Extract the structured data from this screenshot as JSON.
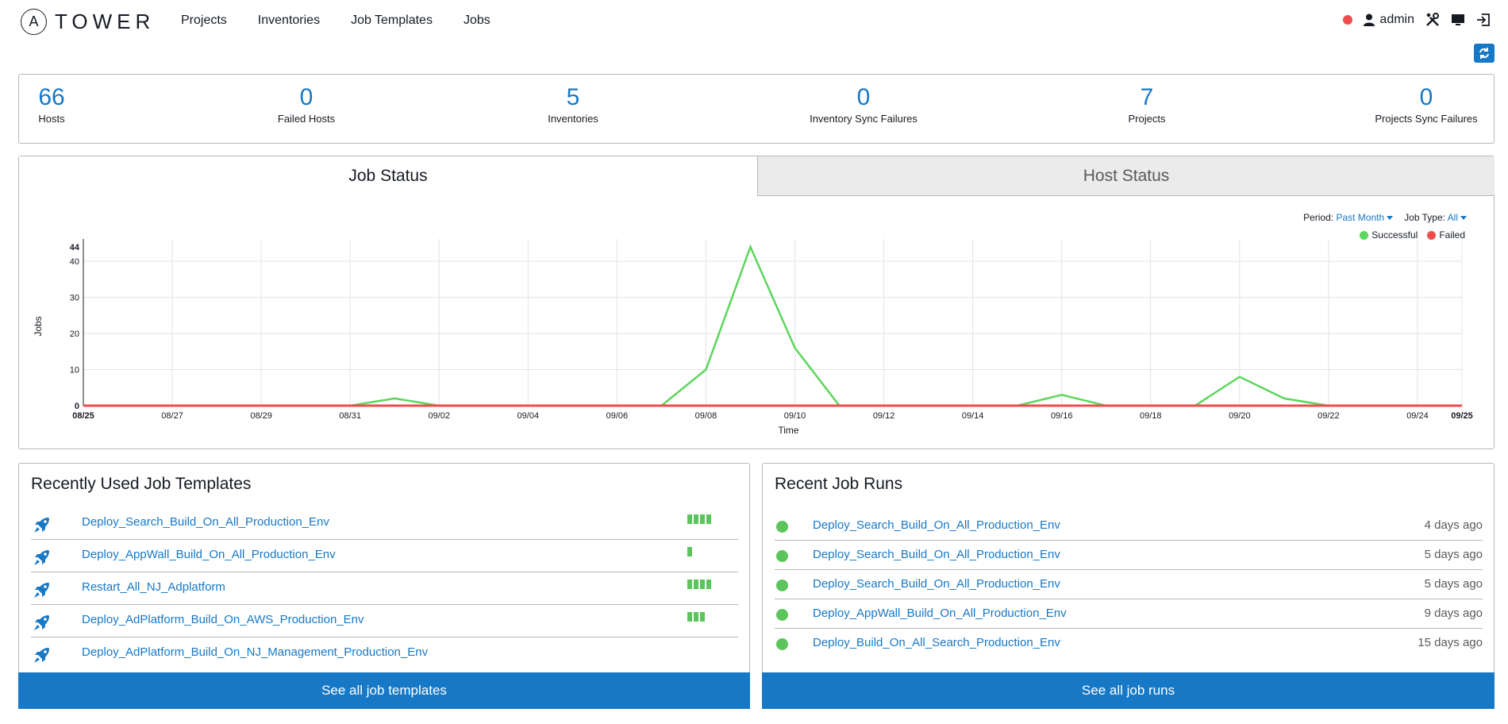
{
  "brand": {
    "logo_letter": "A",
    "name": "TOWER"
  },
  "nav": {
    "links": [
      "Projects",
      "Inventories",
      "Job Templates",
      "Jobs"
    ],
    "user": "admin"
  },
  "counts": [
    {
      "value": "66",
      "label": "Hosts"
    },
    {
      "value": "0",
      "label": "Failed Hosts"
    },
    {
      "value": "5",
      "label": "Inventories"
    },
    {
      "value": "0",
      "label": "Inventory Sync Failures"
    },
    {
      "value": "7",
      "label": "Projects"
    },
    {
      "value": "0",
      "label": "Projects Sync Failures"
    }
  ],
  "tabs": {
    "job_status": "Job Status",
    "host_status": "Host Status"
  },
  "filters": {
    "period_label": "Period:",
    "period_value": "Past Month",
    "job_type_label": "Job Type:",
    "job_type_value": "All"
  },
  "chart_data": {
    "type": "line",
    "title": "",
    "xlabel": "Time",
    "ylabel": "Jobs",
    "ylim": [
      0,
      44
    ],
    "yticks": [
      0,
      10,
      20,
      30,
      40,
      44
    ],
    "x_tick_labels": [
      "08/25",
      "08/27",
      "08/29",
      "08/31",
      "09/02",
      "09/04",
      "09/06",
      "09/08",
      "09/10",
      "09/12",
      "09/14",
      "09/16",
      "09/18",
      "09/20",
      "09/22",
      "09/24",
      "09/25"
    ],
    "x": [
      "08/25",
      "08/26",
      "08/27",
      "08/28",
      "08/29",
      "08/30",
      "08/31",
      "09/01",
      "09/02",
      "09/03",
      "09/04",
      "09/05",
      "09/06",
      "09/07",
      "09/08",
      "09/09",
      "09/10",
      "09/11",
      "09/12",
      "09/13",
      "09/14",
      "09/15",
      "09/16",
      "09/17",
      "09/18",
      "09/19",
      "09/20",
      "09/21",
      "09/22",
      "09/23",
      "09/24",
      "09/25"
    ],
    "series": [
      {
        "name": "Successful",
        "color": "#5cd65c",
        "values": [
          0,
          0,
          0,
          0,
          0,
          0,
          0,
          2,
          0,
          0,
          0,
          0,
          0,
          0,
          10,
          44,
          16,
          0,
          0,
          0,
          0,
          0,
          3,
          0,
          0,
          0,
          8,
          2,
          0,
          0,
          0,
          0
        ]
      },
      {
        "name": "Failed",
        "color": "#ef4d4d",
        "values": [
          0,
          0,
          0,
          0,
          0,
          0,
          0,
          0,
          0,
          0,
          0,
          0,
          0,
          0,
          0,
          0,
          0,
          0,
          0,
          0,
          0,
          0,
          0,
          0,
          0,
          0,
          0,
          0,
          0,
          0,
          0,
          0
        ]
      }
    ],
    "grid": true,
    "legend": "top-right"
  },
  "recent_templates": {
    "title": "Recently Used Job Templates",
    "items": [
      {
        "name": "Deploy_Search_Build_On_All_Production_Env",
        "recent_jobs": 4
      },
      {
        "name": "Deploy_AppWall_Build_On_All_Production_Env",
        "recent_jobs": 1
      },
      {
        "name": "Restart_All_NJ_Adplatform",
        "recent_jobs": 4
      },
      {
        "name": "Deploy_AdPlatform_Build_On_AWS_Production_Env",
        "recent_jobs": 3
      },
      {
        "name": "Deploy_AdPlatform_Build_On_NJ_Management_Production_Env",
        "recent_jobs": 0
      }
    ],
    "see_all": "See all job templates"
  },
  "recent_runs": {
    "title": "Recent Job Runs",
    "items": [
      {
        "name": "Deploy_Search_Build_On_All_Production_Env",
        "time": "4 days ago"
      },
      {
        "name": "Deploy_Search_Build_On_All_Production_Env",
        "time": "5 days ago"
      },
      {
        "name": "Deploy_Search_Build_On_All_Production_Env",
        "time": "5 days ago"
      },
      {
        "name": "Deploy_AppWall_Build_On_All_Production_Env",
        "time": "9 days ago"
      },
      {
        "name": "Deploy_Build_On_All_Search_Production_Env",
        "time": "15 days ago"
      }
    ],
    "see_all": "See all job runs"
  },
  "colors": {
    "accent": "#1778c6",
    "success": "#5cc45c",
    "failed": "#ef4d4d"
  }
}
